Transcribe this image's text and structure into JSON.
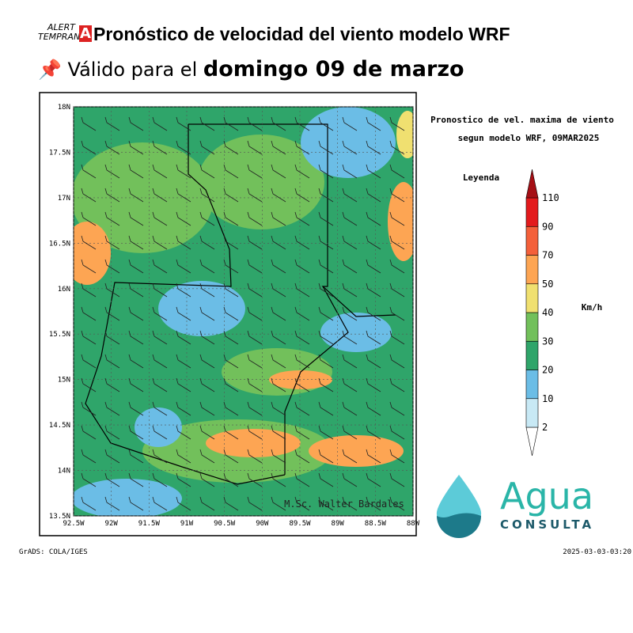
{
  "header": {
    "logo": [
      "ALERT",
      "TEMPRAN",
      "A"
    ],
    "title": "Pronóstico de velocidad del viento modelo WRF",
    "subtitle_prefix": "Válido para el",
    "subtitle_date": "domingo 09 de marzo"
  },
  "map": {
    "title_lines": [
      "Pronostico de vel. maxima de viento",
      "segun modelo WRF, 09MAR2025"
    ],
    "lat_ticks": [
      {
        "value": 18,
        "label": "18N"
      },
      {
        "value": 17.5,
        "label": "17.5N"
      },
      {
        "value": 17,
        "label": "17N"
      },
      {
        "value": 16.5,
        "label": "16.5N"
      },
      {
        "value": 16,
        "label": "16N"
      },
      {
        "value": 15.5,
        "label": "15.5N"
      },
      {
        "value": 15,
        "label": "15N"
      },
      {
        "value": 14.5,
        "label": "14.5N"
      },
      {
        "value": 14,
        "label": "14N"
      },
      {
        "value": 13.5,
        "label": "13.5N"
      }
    ],
    "lon_ticks": [
      {
        "value": -92.5,
        "label": "92.5W"
      },
      {
        "value": -92,
        "label": "92W"
      },
      {
        "value": -91.5,
        "label": "91.5W"
      },
      {
        "value": -91,
        "label": "91W"
      },
      {
        "value": -90.5,
        "label": "90.5W"
      },
      {
        "value": -90,
        "label": "90W"
      },
      {
        "value": -89.5,
        "label": "89.5W"
      },
      {
        "value": -89,
        "label": "89W"
      },
      {
        "value": -88.5,
        "label": "88.5W"
      },
      {
        "value": -88,
        "label": "88W"
      }
    ],
    "credit": "M.Sc. Walter Bardales"
  },
  "legend": {
    "title": "Leyenda",
    "units": "Km/h",
    "levels": [
      2,
      10,
      20,
      30,
      40,
      50,
      70,
      90,
      110
    ],
    "colors": [
      "#ffffff",
      "#c8e9f5",
      "#6bbde6",
      "#2fa56a",
      "#72c05b",
      "#f0e070",
      "#fda553",
      "#f4603a",
      "#e31a1c",
      "#a50f15"
    ]
  },
  "brand": {
    "name": "Agua",
    "tagline": "CONSULTA"
  },
  "footer": {
    "left": "GrADS: COLA/IGES",
    "right": "2025-03-03-03:20"
  }
}
